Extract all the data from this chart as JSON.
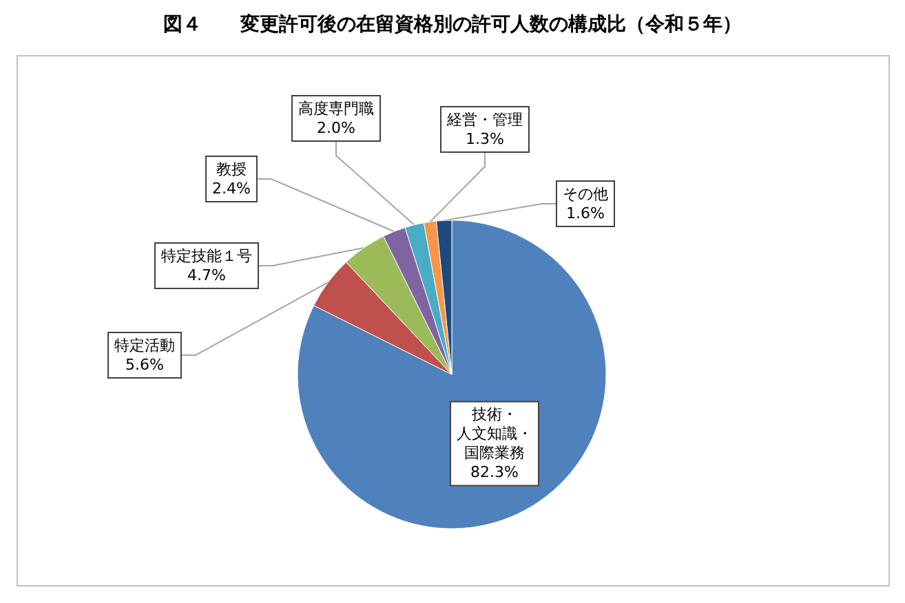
{
  "chart_data": {
    "type": "pie",
    "title": "図４　　変更許可後の在留資格別の許可人数の構成比（令和５年）",
    "categories": [
      "技術・人文知識・国際業務",
      "特定活動",
      "特定技能１号",
      "教授",
      "高度専門職",
      "経営・管理",
      "その他"
    ],
    "values": [
      82.3,
      5.6,
      4.7,
      2.4,
      2.0,
      1.3,
      1.6
    ],
    "value_labels": [
      "82.3%",
      "5.6%",
      "4.7%",
      "2.4%",
      "2.0%",
      "1.3%",
      "1.6%"
    ],
    "colors": [
      "#4f81bd",
      "#c0504d",
      "#9bbb59",
      "#8064a2",
      "#4bacc6",
      "#f79646",
      "#1f497d"
    ],
    "legend": false
  }
}
